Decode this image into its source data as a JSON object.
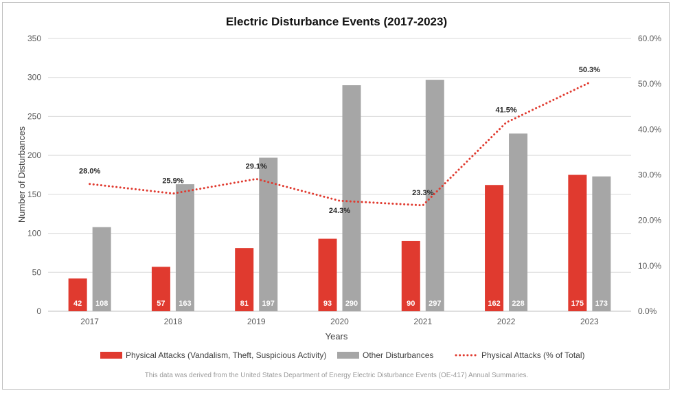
{
  "chart_data": {
    "type": "bar",
    "title": "Electric Disturbance Events (2017-2023)",
    "xlabel": "Years",
    "ylabel": "Number of Disturbances",
    "ylim": [
      0,
      350
    ],
    "y_ticks": [
      "0",
      "50",
      "100",
      "150",
      "200",
      "250",
      "300",
      "350"
    ],
    "y2lim": [
      0,
      60
    ],
    "y2_ticks": [
      "0.0%",
      "10.0%",
      "20.0%",
      "30.0%",
      "40.0%",
      "50.0%",
      "60.0%"
    ],
    "categories": [
      "2017",
      "2018",
      "2019",
      "2020",
      "2021",
      "2022",
      "2023"
    ],
    "grid": "horizontal",
    "legend_position": "bottom",
    "series": [
      {
        "name": "Physical Attacks (Vandalism, Theft, Suspicious Activity)",
        "type": "bar",
        "axis": "left",
        "color": "#e03a2f",
        "values": [
          42,
          57,
          81,
          93,
          90,
          162,
          175
        ],
        "labels": [
          "42",
          "57",
          "81",
          "93",
          "90",
          "162",
          "175"
        ]
      },
      {
        "name": "Other Disturbances",
        "type": "bar",
        "axis": "left",
        "color": "#a6a6a6",
        "values": [
          108,
          163,
          197,
          290,
          297,
          228,
          173
        ],
        "labels": [
          "108",
          "163",
          "197",
          "290",
          "297",
          "228",
          "173"
        ]
      },
      {
        "name": "Physical Attacks (% of Total)",
        "type": "line",
        "style": "dotted",
        "axis": "right",
        "color": "#e03a2f",
        "values": [
          28.0,
          25.9,
          29.1,
          24.3,
          23.3,
          41.5,
          50.3
        ],
        "labels": [
          "28.0%",
          "25.9%",
          "29.1%",
          "24.3%",
          "23.3%",
          "41.5%",
          "50.3%"
        ]
      }
    ],
    "footnote": "This data was derived from the United States Department of Energy Electric Disturbance Events (OE-417) Annual Summaries."
  }
}
